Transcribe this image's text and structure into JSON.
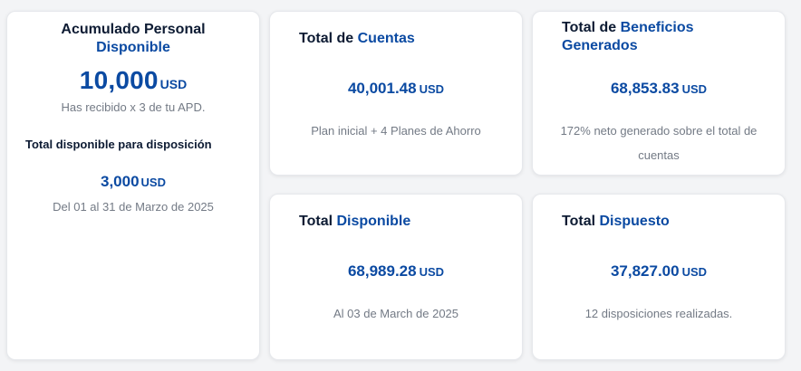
{
  "personal": {
    "title_part1": "Acumulado Personal",
    "title_part2": "Disponible",
    "amount": "10,000",
    "currency": "USD",
    "subtitle": "Has recibido x 3 de tu APD.",
    "label": "Total disponible para disposición",
    "amount2": "3,000",
    "currency2": "USD",
    "subtitle2": "Del 01 al 31 de Marzo de 2025"
  },
  "cuentas": {
    "title_part1": "Total de",
    "title_part2": "Cuentas",
    "amount": "40,001.48",
    "currency": "USD",
    "subtitle": "Plan inicial + 4 Planes de Ahorro"
  },
  "beneficios": {
    "title_part1": "Total de",
    "title_part2": "Beneficios Generados",
    "amount": "68,853.83",
    "currency": "USD",
    "subtitle": "172% neto generado sobre el total de cuentas"
  },
  "disponible": {
    "title_part1": "Total",
    "title_part2": "Disponible",
    "amount": "68,989.28",
    "currency": "USD",
    "subtitle": "Al 03 de March de 2025"
  },
  "dispuesto": {
    "title_part1": "Total",
    "title_part2": "Dispuesto",
    "amount": "37,827.00",
    "currency": "USD",
    "subtitle": "12 disposiciones realizadas."
  },
  "colors": {
    "dark_text": "#0d1b33",
    "accent_blue": "#0b4aa2",
    "muted_text": "#737a85",
    "card_bg": "#ffffff",
    "page_bg": "#f3f4f6"
  }
}
